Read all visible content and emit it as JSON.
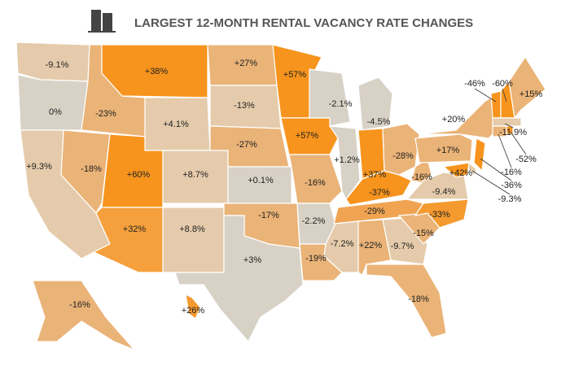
{
  "title": "LARGEST 12-MONTH RENTAL VACANCY RATE CHANGES",
  "regions": [
    {
      "label": "-9.1%",
      "color": "#e5cbab"
    },
    {
      "label": "0%",
      "color": "#d8d1c6"
    },
    {
      "label": "-23%",
      "color": "#eab377"
    },
    {
      "label": "+38%",
      "color": "#f7941d"
    },
    {
      "label": "+4.1%",
      "color": "#e5cbab"
    },
    {
      "label": "-18%",
      "color": "#eab377"
    },
    {
      "label": "+60%",
      "color": "#f7941d"
    },
    {
      "label": "+9.3%",
      "color": "#e5cbab"
    },
    {
      "label": "+32%",
      "color": "#f5a03c"
    },
    {
      "label": "+8.7%",
      "color": "#e5cbab"
    },
    {
      "label": "+8.8%",
      "color": "#e5cbab"
    },
    {
      "label": "+27%",
      "color": "#eab377"
    },
    {
      "label": "-13%",
      "color": "#e5cbab"
    },
    {
      "label": "-27%",
      "color": "#eab377"
    },
    {
      "label": "+0.1%",
      "color": "#d8d1c6"
    },
    {
      "label": "-17%",
      "color": "#eab377"
    },
    {
      "label": "+3%",
      "color": "#d8d1c6"
    },
    {
      "label": "+57%",
      "color": "#f7941d"
    },
    {
      "label": "+57%",
      "color": "#f7941d"
    },
    {
      "label": "-16%",
      "color": "#eab377"
    },
    {
      "label": "-2.2%",
      "color": "#d8d1c6"
    },
    {
      "label": "-19%",
      "color": "#eab377"
    },
    {
      "label": "-2.1%",
      "color": "#d8d1c6"
    },
    {
      "label": "+1.2%",
      "color": "#d8d1c6"
    },
    {
      "label": "-4.5%",
      "color": "#d8d1c6"
    },
    {
      "label": "+37%",
      "color": "#f7941d"
    },
    {
      "label": "-28%",
      "color": "#eab377"
    },
    {
      "label": "-37%",
      "color": "#f7941d"
    },
    {
      "label": "-29%",
      "color": "#f0a452"
    },
    {
      "label": "-7.2%",
      "color": "#e5cbab"
    },
    {
      "label": "+22%",
      "color": "#eab377"
    },
    {
      "label": "-9.7%",
      "color": "#e5cbab"
    },
    {
      "label": "-18%",
      "color": "#eab377"
    },
    {
      "label": "-15%",
      "color": "#eab377"
    },
    {
      "label": "-33%",
      "color": "#f59a2e"
    },
    {
      "label": "-16%",
      "color": "#eab377"
    },
    {
      "label": "-9.4%",
      "color": "#e5cbab"
    },
    {
      "label": "+17%",
      "color": "#eab377"
    },
    {
      "label": "+20%",
      "color": "#eab377"
    },
    {
      "label": "-46%",
      "color": "#f7941d"
    },
    {
      "label": "-60%",
      "color": "#f7941d"
    },
    {
      "label": "+15%",
      "color": "#eab377"
    },
    {
      "label": "-11.9%",
      "color": "#e5cbab"
    },
    {
      "label": "-16%",
      "color": "#eab377"
    },
    {
      "label": "-52%",
      "color": "#f7941d"
    },
    {
      "label": "-36%",
      "color": "#f7941d"
    },
    {
      "label": "-9.3%",
      "color": "#e5cbab"
    },
    {
      "label": "+42%",
      "color": "#f7941d"
    },
    {
      "label": "-16%",
      "color": "#eab377"
    },
    {
      "label": "+26%",
      "color": "#f59a2e"
    }
  ]
}
